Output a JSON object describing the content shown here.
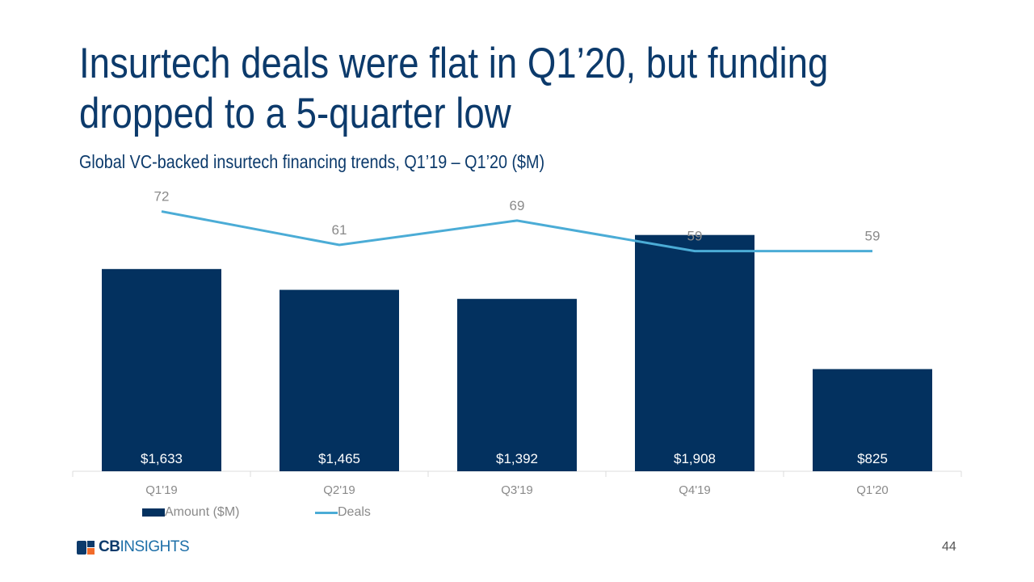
{
  "header": {
    "title_line1": "Insurtech deals were flat in Q1’20, but funding",
    "title_line2": "dropped to a 5-quarter low",
    "subtitle": "Global VC-backed insurtech financing trends, Q1’19 – Q1’20 ($M)"
  },
  "chart_data": {
    "type": "bar+line",
    "categories": [
      "Q1'19",
      "Q2'19",
      "Q3'19",
      "Q4'19",
      "Q1'20"
    ],
    "series": [
      {
        "name": "Amount ($M)",
        "type": "bar",
        "values": [
          1633,
          1465,
          1392,
          1908,
          825
        ],
        "labels": [
          "$1,633",
          "$1,465",
          "$1,392",
          "$1,908",
          "$825"
        ],
        "color": "#03315f"
      },
      {
        "name": "Deals",
        "type": "line",
        "values": [
          72,
          61,
          69,
          59,
          59
        ],
        "labels": [
          "72",
          "61",
          "69",
          "59",
          "59"
        ],
        "color": "#4bacd6"
      }
    ],
    "ylim": [
      0,
      2500
    ],
    "grid": false,
    "legend": "bottom-left"
  },
  "footer": {
    "logo_cb": "CB",
    "logo_insights": "INSIGHTS",
    "page_number": "44"
  }
}
